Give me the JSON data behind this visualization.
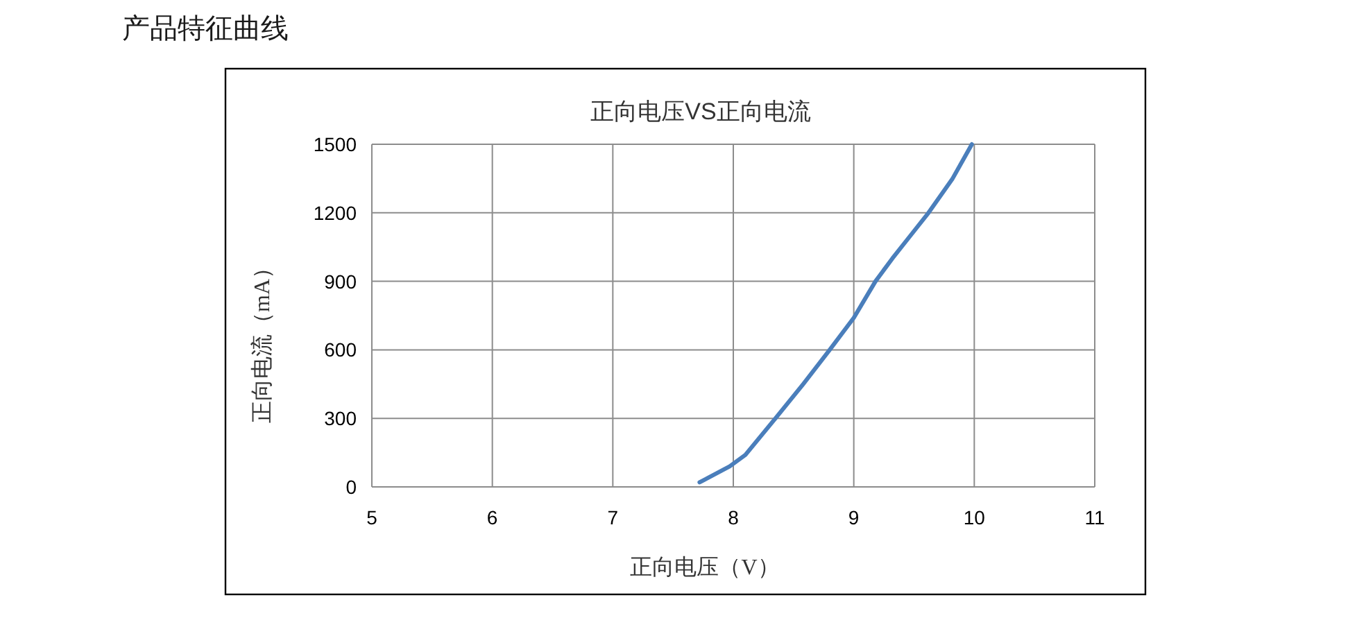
{
  "chart_data": {
    "type": "line",
    "title": "产品特征曲线",
    "subtitle": "正向电压VS正向电流",
    "xlabel": "正向电压（V）",
    "ylabel": "正向电流（mA）",
    "series": [
      {
        "color": "#4a7ebb",
        "x": [
          7.72,
          7.97,
          8.1,
          8.35,
          8.58,
          8.8,
          9.0,
          9.18,
          9.32,
          9.47,
          9.62,
          9.82,
          9.98
        ],
        "values": [
          20,
          90,
          140,
          300,
          450,
          600,
          740,
          900,
          1000,
          1100,
          1200,
          1350,
          1500
        ]
      }
    ],
    "xlim": [
      5,
      11
    ],
    "ylim": [
      0,
      1500
    ],
    "xticks": [
      5,
      6,
      7,
      8,
      9,
      10,
      11
    ],
    "yticks": [
      0,
      300,
      600,
      900,
      1200,
      1500
    ],
    "grid": true,
    "line_style": "solid"
  }
}
